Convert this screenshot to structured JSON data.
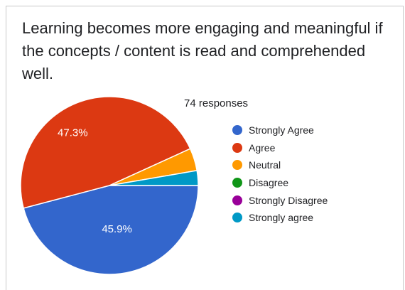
{
  "title": "Learning becomes more engaging and meaningful if the concepts / content is read and comprehended well.",
  "responses_label": "74 responses",
  "chart_data": {
    "type": "pie",
    "responses": 74,
    "categories": [
      "Strongly Agree",
      "Agree",
      "Neutral",
      "Disagree",
      "Strongly Disagree",
      "Strongly agree"
    ],
    "values": [
      45.9,
      47.3,
      4.1,
      0,
      0,
      2.7
    ],
    "unit": "%",
    "labels": [
      "45.9%",
      "47.3%",
      "",
      "",
      "",
      ""
    ],
    "colors": [
      "#3366cc",
      "#dc3912",
      "#ff9900",
      "#109618",
      "#990099",
      "#0099c6"
    ],
    "legend_position": "right"
  }
}
